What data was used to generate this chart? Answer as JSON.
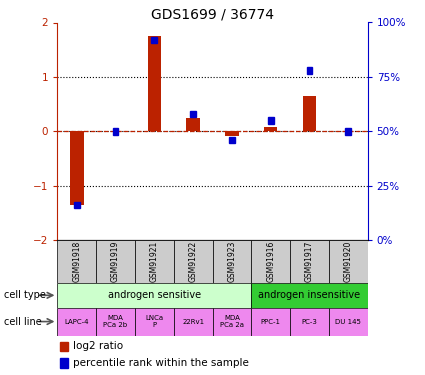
{
  "title": "GDS1699 / 36774",
  "samples": [
    "GSM91918",
    "GSM91919",
    "GSM91921",
    "GSM91922",
    "GSM91923",
    "GSM91916",
    "GSM91917",
    "GSM91920"
  ],
  "log2_ratio": [
    -1.35,
    0.0,
    1.75,
    0.25,
    -0.08,
    0.08,
    0.65,
    0.0
  ],
  "percentile_rank": [
    16,
    50,
    92,
    58,
    46,
    55,
    78,
    50
  ],
  "ylim_left": [
    -2,
    2
  ],
  "ylim_right": [
    0,
    100
  ],
  "yticks_left": [
    -2,
    -1,
    0,
    1,
    2
  ],
  "yticks_right": [
    0,
    25,
    50,
    75,
    100
  ],
  "ytick_labels_right": [
    "0%",
    "25%",
    "50%",
    "75%",
    "100%"
  ],
  "dotted_lines": [
    -1,
    0,
    1
  ],
  "bar_color_red": "#bb2200",
  "bar_color_blue": "#0000cc",
  "cell_type_labels": [
    {
      "label": "androgen sensitive",
      "start": 0,
      "end": 4,
      "color": "#ccffcc"
    },
    {
      "label": "androgen insensitive",
      "start": 5,
      "end": 7,
      "color": "#33cc33"
    }
  ],
  "cell_line_labels": [
    "LAPC-4",
    "MDA\nPCa 2b",
    "LNCa\nP",
    "22Rv1",
    "MDA\nPCa 2a",
    "PPC-1",
    "PC-3",
    "DU 145"
  ],
  "cell_line_color": "#ee88ee",
  "gsm_bg_color": "#cccccc",
  "legend_red_label": "log2 ratio",
  "legend_blue_label": "percentile rank within the sample"
}
